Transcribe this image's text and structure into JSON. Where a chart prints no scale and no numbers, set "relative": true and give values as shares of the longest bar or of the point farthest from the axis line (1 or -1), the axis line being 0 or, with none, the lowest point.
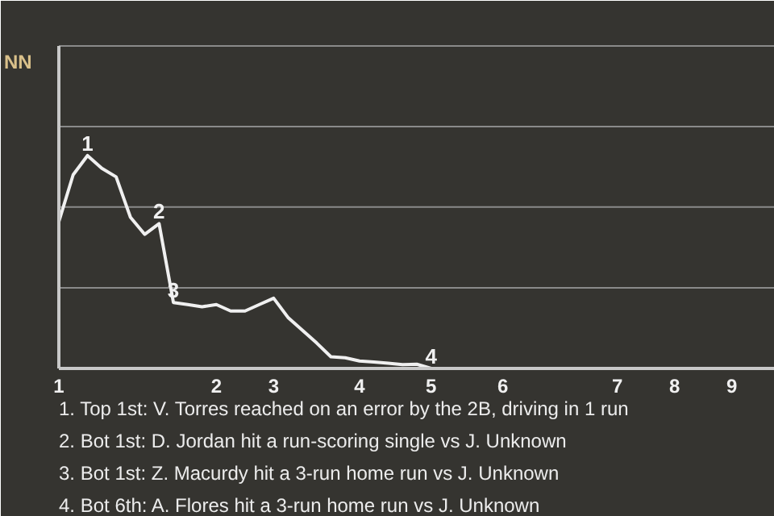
{
  "chart_data": {
    "type": "line",
    "relative": true,
    "ylabel": "NN",
    "categories": [
      "1",
      null,
      null,
      null,
      null,
      null,
      null,
      null,
      null,
      null,
      null,
      "2",
      null,
      null,
      null,
      "3",
      null,
      null,
      null,
      null,
      null,
      "4",
      null,
      null,
      null,
      null,
      "5",
      null,
      null,
      null,
      null,
      "6",
      null,
      null,
      null,
      null,
      null,
      null,
      null,
      "7",
      null,
      null,
      null,
      "8",
      null,
      null,
      null,
      "9",
      null,
      null,
      null
    ],
    "series": [
      {
        "color": "#f0f0f0",
        "values": [
          0.69,
          0.91,
          1.0,
          0.94,
          0.9,
          0.71,
          0.63,
          0.68,
          0.31,
          0.3,
          0.29,
          0.3,
          0.27,
          0.27,
          0.3,
          0.33,
          0.24,
          0.18,
          0.12,
          0.055,
          0.05,
          0.035,
          0.03,
          0.025,
          0.018,
          0.02,
          0,
          0,
          0,
          0,
          0,
          0,
          0,
          0,
          0,
          0,
          0,
          0,
          0,
          0,
          0,
          0,
          0,
          0,
          0,
          0,
          0,
          0,
          0,
          0,
          0
        ]
      }
    ],
    "ref_lines": [
      {
        "axis": "y",
        "value": 0.379,
        "color": "#8a8a8a"
      },
      {
        "axis": "y",
        "value": 0.758,
        "color": "#8a8a8a"
      },
      {
        "axis": "y",
        "value": 1.136,
        "color": "#8a8a8a"
      },
      {
        "axis": "y",
        "value": 1.515,
        "color": "#8a8a8a"
      }
    ],
    "annotations": [
      {
        "text": "1",
        "y": 1.0
      },
      {
        "text": "2",
        "y": 0.68
      },
      {
        "text": "3",
        "y": 0.31
      },
      {
        "text": "4",
        "y": 0
      },
      "1. Top 1st: V. Torres reached on an error by the 2B, driving in 1 run",
      "2. Bot 1st: D. Jordan hit a run-scoring single vs J. Unknown",
      "3. Bot 1st: Z. Macurdy hit a 3-run home run vs J. Unknown",
      "4. Bot 6th: A. Flores hit a 3-run home run vs J. Unknown"
    ]
  }
}
